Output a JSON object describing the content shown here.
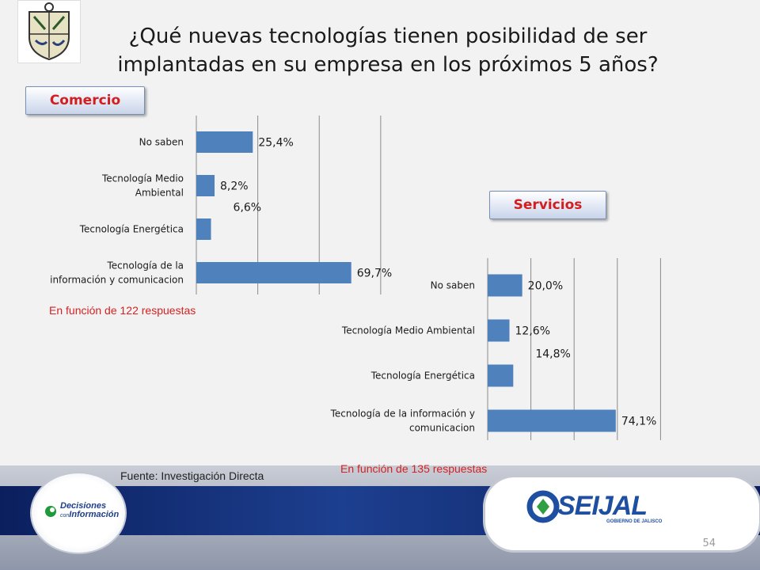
{
  "title": "¿Qué nuevas tecnologías tienen posibilidad de ser implantadas en su empresa en los próximos 5 años?",
  "badges": {
    "comercio": "Comercio",
    "servicios": "Servicios"
  },
  "notes": {
    "comercio": "En función de 122 respuestas",
    "servicios": "En función de 135 respuestas",
    "source": "Fuente: Investigación Directa"
  },
  "logos": {
    "decisiones_1": "Decisiones",
    "decisiones_2": "con",
    "decisiones_3": "Información",
    "seijal": "SEIJAL",
    "seijal_sub": "GOBIERNO DE JALISCO"
  },
  "page_number": "54",
  "colors": {
    "bar": "#4f81bd",
    "accent_red": "#d52222",
    "band_blue": "#0f2a6e"
  },
  "chart_data": [
    {
      "type": "bar",
      "orientation": "horizontal",
      "panel": "Comercio",
      "categories": [
        "No saben",
        "Tecnología Medio Ambiental",
        "Tecnología Energética",
        "Tecnología de la información y comunicacion"
      ],
      "values": [
        25.4,
        8.2,
        6.6,
        69.7
      ],
      "labels": [
        "25,4%",
        "8,2%",
        "6,6%",
        "69,7%"
      ],
      "xlim": [
        0,
        100
      ],
      "grid": true
    },
    {
      "type": "bar",
      "orientation": "horizontal",
      "panel": "Servicios",
      "categories": [
        "No saben",
        "Tecnología Medio Ambiental",
        "Tecnología Energética",
        "Tecnología de la información y comunicacion"
      ],
      "values": [
        20.0,
        12.6,
        14.8,
        74.1
      ],
      "labels": [
        "20,0%",
        "12,6%",
        "14,8%",
        "74,1%"
      ],
      "xlim": [
        0,
        100
      ],
      "grid": true
    }
  ]
}
